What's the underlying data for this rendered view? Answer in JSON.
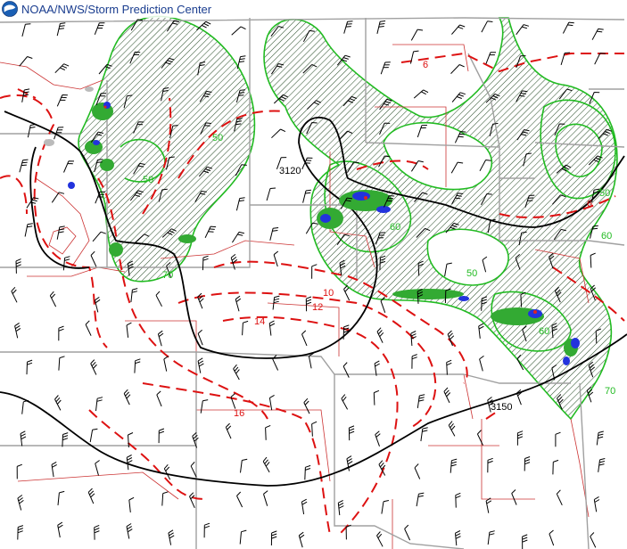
{
  "header": {
    "title": "NOAA/NWS/Storm Prediction Center",
    "logo_icon": "noaa-logo-icon"
  },
  "height_contours": {
    "color": "#000000",
    "labels": [
      "3120",
      "3150"
    ]
  },
  "dashed_contours": {
    "color": "#dd1111",
    "labels": [
      "10",
      "12",
      "14",
      "16",
      "6",
      "6"
    ]
  },
  "green_contours": {
    "color": "#22bb22",
    "labels": [
      "50",
      "50",
      "70",
      "60",
      "60",
      "50",
      "60",
      "50",
      "70"
    ]
  },
  "colors": {
    "state_border": "#a0a0a0",
    "county_border": "#cc3333",
    "radar_blue": "#2233dd",
    "radar_green": "#33aa33",
    "hatch": "#335533"
  }
}
